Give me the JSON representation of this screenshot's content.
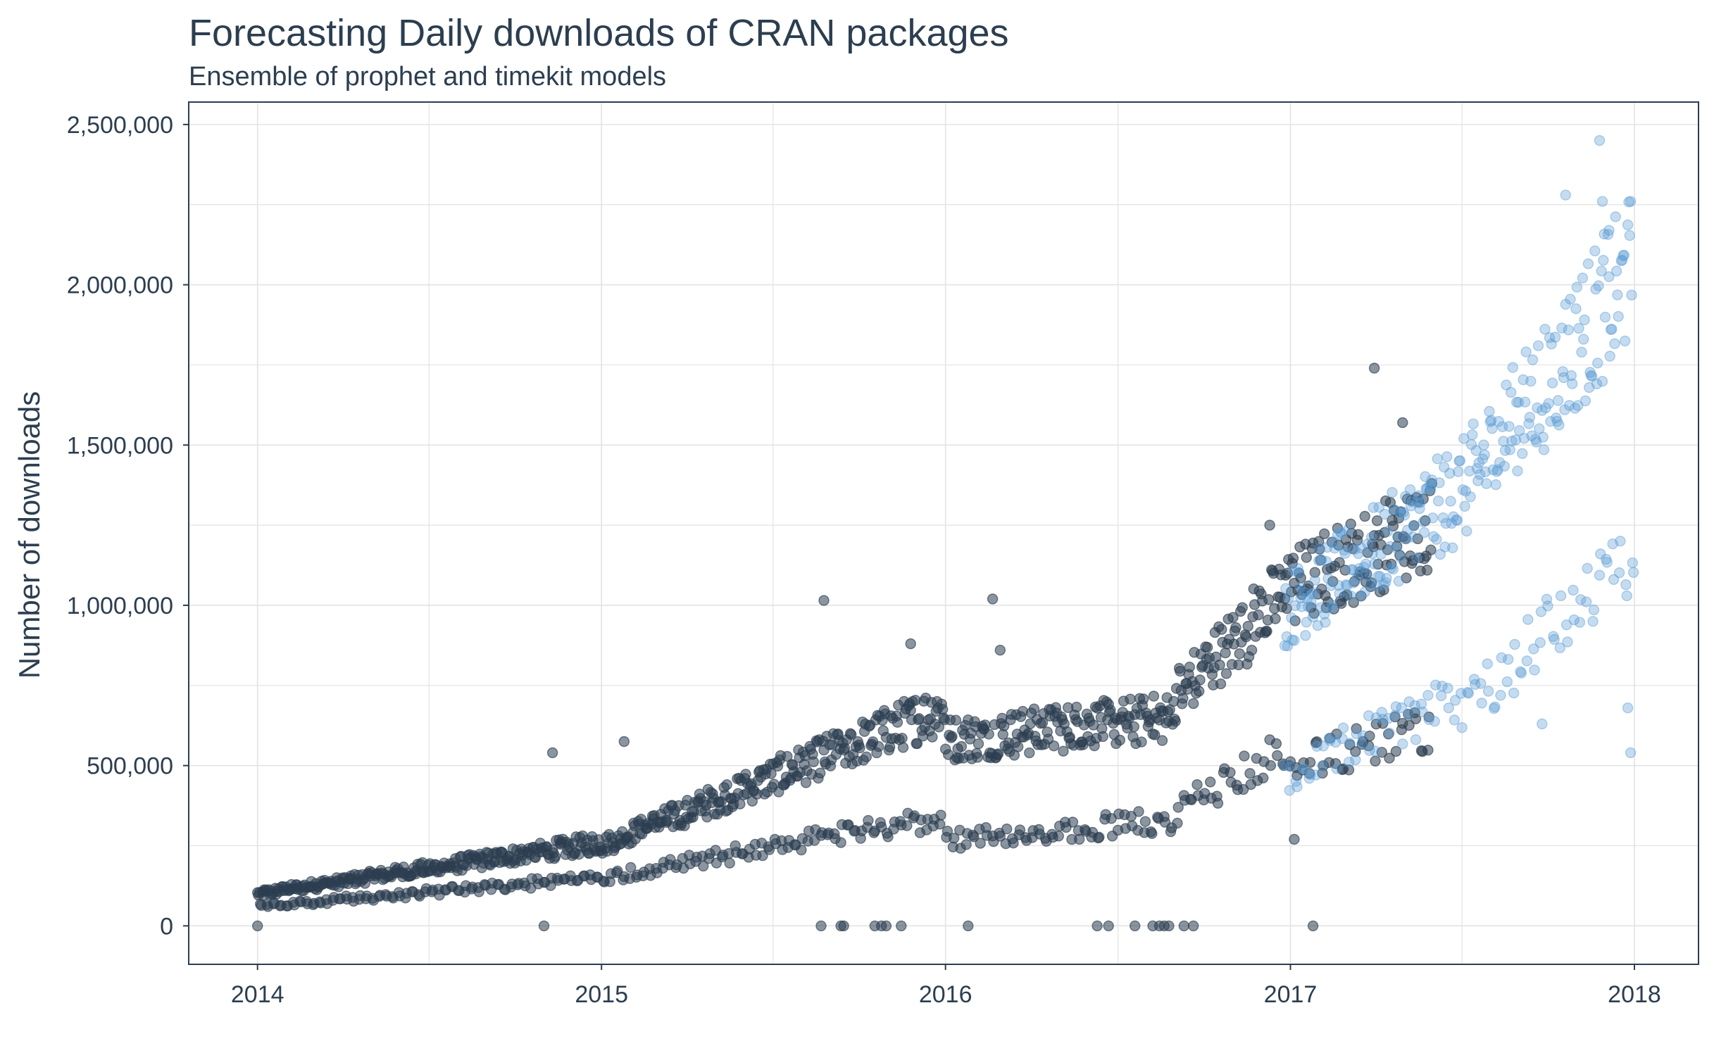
{
  "chart_data": {
    "type": "scatter",
    "title": "Forecasting Daily downloads of CRAN packages",
    "subtitle": "Ensemble of prophet and timekit models",
    "xlabel": "",
    "ylabel": "Number of downloads",
    "x_ticks": [
      "2014",
      "2015",
      "2016",
      "2017",
      "2018"
    ],
    "y_ticks": [
      "0",
      "500,000",
      "1,000,000",
      "1,500,000",
      "2,000,000",
      "2,500,000"
    ],
    "xlim": [
      "2013-10-20",
      "2018-03-10"
    ],
    "ylim": [
      -120000,
      2570000
    ],
    "grid": true,
    "legend": "none",
    "colors": {
      "actual": "#2c3e50",
      "forecast": "#5a9bd4",
      "grid": "#e3e3e3",
      "axis": "#2c3e50"
    },
    "series": [
      {
        "kind": "actual",
        "segments": [
          {
            "start": "2014-01-01",
            "end": "2014-12-31",
            "upper_start": 100000,
            "upper_end": 260000,
            "lower_start": 60000,
            "lower_end": 150000
          },
          {
            "start": "2015-01-01",
            "end": "2015-12-31",
            "upper_start": 250000,
            "upper_end": 680000,
            "lower_start": 150000,
            "lower_end": 340000
          },
          {
            "start": "2016-01-01",
            "end": "2016-08-31",
            "upper_start": 580000,
            "upper_end": 650000,
            "lower_start": 270000,
            "lower_end": 330000
          },
          {
            "start": "2016-09-01",
            "end": "2016-12-31",
            "upper_start": 720000,
            "upper_end": 1050000,
            "lower_start": 360000,
            "lower_end": 560000
          },
          {
            "start": "2017-01-01",
            "end": "2017-05-31",
            "upper_start": 1050000,
            "upper_end": 1260000,
            "lower_start": 500000,
            "lower_end": 620000
          }
        ],
        "outliers": [
          [
            "2014-11-10",
            540000
          ],
          [
            "2015-01-25",
            575000
          ],
          [
            "2015-08-25",
            1015000
          ],
          [
            "2015-11-25",
            880000
          ],
          [
            "2016-02-20",
            1020000
          ],
          [
            "2016-02-28",
            860000
          ],
          [
            "2017-03-31",
            1740000
          ],
          [
            "2017-04-30",
            1570000
          ],
          [
            "2016-12-10",
            1250000
          ],
          [
            "2017-01-05",
            270000
          ],
          [
            "2014-11-01",
            0
          ],
          [
            "2014-01-01",
            0
          ],
          [
            "2015-08-22",
            0
          ],
          [
            "2015-09-12",
            0
          ],
          [
            "2015-09-15",
            0
          ],
          [
            "2015-10-18",
            0
          ],
          [
            "2015-10-25",
            0
          ],
          [
            "2015-10-30",
            0
          ],
          [
            "2015-11-15",
            0
          ],
          [
            "2016-01-25",
            0
          ],
          [
            "2016-06-10",
            0
          ],
          [
            "2016-06-22",
            0
          ],
          [
            "2016-07-20",
            0
          ],
          [
            "2016-08-08",
            0
          ],
          [
            "2016-08-15",
            0
          ],
          [
            "2016-08-20",
            0
          ],
          [
            "2016-08-25",
            0
          ],
          [
            "2016-09-10",
            0
          ],
          [
            "2016-09-20",
            0
          ],
          [
            "2017-01-25",
            0
          ]
        ]
      },
      {
        "kind": "forecast",
        "segments": [
          {
            "start": "2016-12-25",
            "end": "2017-06-30",
            "upper_start": 980000,
            "upper_end": 1350000,
            "lower_start": 470000,
            "lower_end": 720000
          },
          {
            "start": "2017-07-01",
            "end": "2017-12-31",
            "upper_start": 1350000,
            "upper_end": 2050000,
            "lower_start": 680000,
            "lower_end": 1150000
          }
        ],
        "outliers": [
          [
            "2017-11-25",
            2450000
          ],
          [
            "2017-10-20",
            2280000
          ],
          [
            "2017-11-28",
            2260000
          ],
          [
            "2017-12-05",
            2170000
          ],
          [
            "2017-09-25",
            630000
          ],
          [
            "2017-12-28",
            540000
          ],
          [
            "2017-12-25",
            680000
          ]
        ]
      }
    ]
  }
}
